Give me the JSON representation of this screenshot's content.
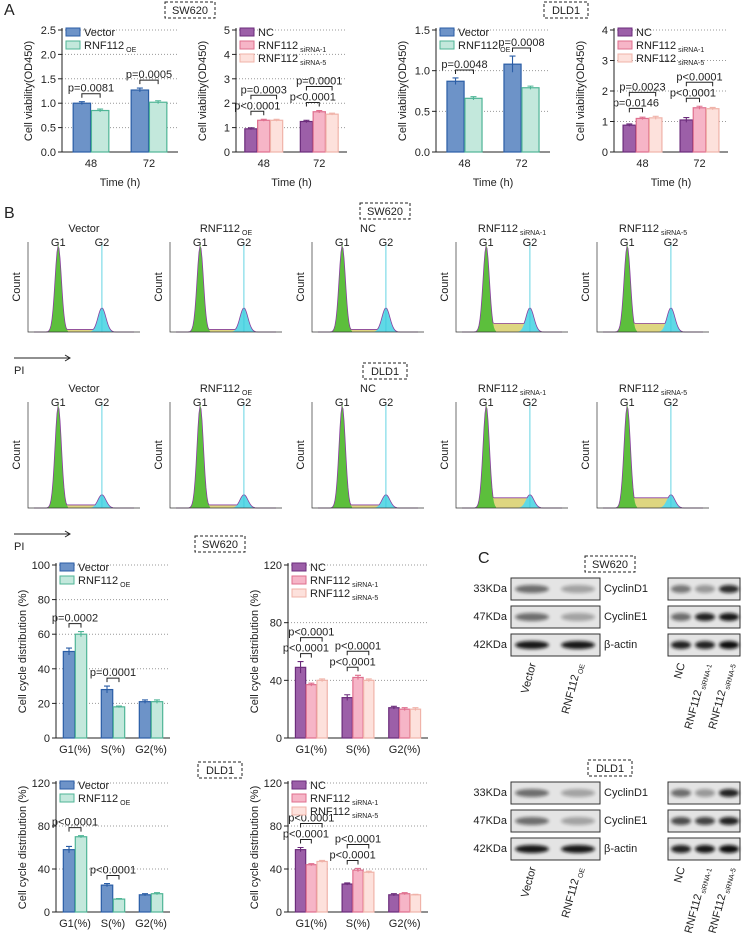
{
  "panel_a": {
    "label": "A",
    "cell_lines": [
      "SW620",
      "DLD1"
    ]
  },
  "chart_data": [
    {
      "type": "bar",
      "ylabel": "Cell viability(OD450)",
      "xlabel": "Time (h)",
      "categories": [
        "48",
        "72"
      ],
      "ylim": [
        0,
        2.5
      ],
      "yticks": [
        {
          "value": 0,
          "label": "0.0"
        },
        {
          "value": 0.5,
          "label": "0.5"
        },
        {
          "value": 1,
          "label": "1.0"
        },
        {
          "value": 1.5,
          "label": "1.5"
        },
        {
          "value": 2,
          "label": "2.0"
        },
        {
          "value": 2.5,
          "label": "2.5"
        }
      ],
      "grid": true,
      "series": [
        {
          "name": "Vector",
          "color": "#6d93c8",
          "edge": "#2b5ea6",
          "values": [
            1.0,
            1.27
          ],
          "errors": [
            0.03,
            0.04
          ]
        },
        {
          "name": "RNF112",
          "name_sub": "OE",
          "color": "#c3e8dc",
          "edge": "#4fb596",
          "values": [
            0.85,
            1.02
          ],
          "errors": [
            0.03,
            0.03
          ]
        }
      ],
      "annotations": [
        [
          "p=0.0081"
        ],
        [
          "p=0.0005"
        ]
      ]
    },
    {
      "type": "bar",
      "ylabel": "Cell viability(OD450)",
      "xlabel": "Time (h)",
      "categories": [
        "48",
        "72"
      ],
      "ylim": [
        0,
        5
      ],
      "yticks": [
        0,
        1,
        2,
        3,
        4,
        5
      ],
      "grid": true,
      "series": [
        {
          "name": "NC",
          "color": "#9c5fa8",
          "edge": "#6b2c7b",
          "values": [
            0.95,
            1.25
          ],
          "errors": [
            0.04,
            0.05
          ]
        },
        {
          "name": "RNF112",
          "name_sub": "siRNA-1",
          "color": "#f6b5c7",
          "edge": "#df6f8e",
          "values": [
            1.3,
            1.65
          ],
          "errors": [
            0.04,
            0.05
          ]
        },
        {
          "name": "RNF112",
          "name_sub": "siRNA-5",
          "color": "#fde1dc",
          "edge": "#f0b3a9",
          "values": [
            1.3,
            1.55
          ],
          "errors": [
            0.04,
            0.04
          ]
        }
      ],
      "annotations": [
        [
          "p<0.0001",
          "p=0.0003"
        ],
        [
          "p<0.0001",
          "p=0.0001"
        ]
      ]
    },
    {
      "type": "bar",
      "ylabel": "Cell viability(OD450)",
      "xlabel": "Time (h)",
      "categories": [
        "48",
        "72"
      ],
      "ylim": [
        0,
        1.5
      ],
      "yticks": [
        {
          "value": 0,
          "label": "0.0"
        },
        {
          "value": 0.5,
          "label": "0.5"
        },
        {
          "value": 1,
          "label": "1.0"
        },
        {
          "value": 1.5,
          "label": "1.5"
        }
      ],
      "grid": true,
      "series": [
        {
          "name": "Vector",
          "color": "#6d93c8",
          "edge": "#2b5ea6",
          "values": [
            0.87,
            1.08
          ],
          "errors": [
            0.04,
            0.1
          ]
        },
        {
          "name": "RNF112",
          "name_sub": "OE",
          "color": "#c3e8dc",
          "edge": "#4fb596",
          "values": [
            0.66,
            0.79
          ],
          "errors": [
            0.02,
            0.02
          ]
        }
      ],
      "annotations": [
        [
          "p=0.0048"
        ],
        [
          "p=0.0008"
        ]
      ]
    },
    {
      "type": "bar",
      "ylabel": "Cell viability(OD450)",
      "xlabel": "Time (h)",
      "categories": [
        "48",
        "72"
      ],
      "ylim": [
        0,
        4
      ],
      "yticks": [
        0,
        1,
        2,
        3,
        4
      ],
      "grid": true,
      "series": [
        {
          "name": "NC",
          "color": "#9c5fa8",
          "edge": "#6b2c7b",
          "values": [
            0.88,
            1.05
          ],
          "errors": [
            0.04,
            0.08
          ]
        },
        {
          "name": "RNF112",
          "name_sub": "siRNA-1",
          "color": "#f6b5c7",
          "edge": "#df6f8e",
          "values": [
            1.1,
            1.45
          ],
          "errors": [
            0.04,
            0.05
          ]
        },
        {
          "name": "RNF112",
          "name_sub": "siRNA-5",
          "color": "#fde1dc",
          "edge": "#f0b3a9",
          "values": [
            1.12,
            1.42
          ],
          "errors": [
            0.05,
            0.04
          ]
        }
      ],
      "annotations": [
        [
          "p=0.0146",
          "p=0.0023"
        ],
        [
          "p<0.0001",
          "p<0.0001"
        ]
      ]
    },
    {
      "type": "bar",
      "ylabel": "Cell cycle distribution (%)",
      "categories": [
        "G1(%)",
        "S(%)",
        "G2(%)"
      ],
      "ylim": [
        0,
        100
      ],
      "yticks": [
        0,
        20,
        40,
        60,
        80,
        100
      ],
      "grid": true,
      "series": [
        {
          "name": "Vector",
          "color": "#6d93c8",
          "edge": "#2b5ea6",
          "values": [
            50,
            28,
            21
          ],
          "errors": [
            2,
            2,
            1
          ]
        },
        {
          "name": "RNF112",
          "name_sub": "OE",
          "color": "#c3e8dc",
          "edge": "#4fb596",
          "values": [
            60,
            18,
            21
          ],
          "errors": [
            1.5,
            0.5,
            1
          ]
        }
      ],
      "annotations": [
        [
          "p=0.0002"
        ],
        [
          "p=0.0001"
        ],
        []
      ]
    },
    {
      "type": "bar",
      "ylabel": "Cell cycle distribution (%)",
      "categories": [
        "G1(%)",
        "S(%)",
        "G2(%)"
      ],
      "ylim": [
        0,
        120
      ],
      "yticks": [
        0,
        40,
        80,
        120
      ],
      "grid": true,
      "series": [
        {
          "name": "NC",
          "color": "#9c5fa8",
          "edge": "#6b2c7b",
          "values": [
            49,
            28,
            21
          ],
          "errors": [
            4,
            2,
            1
          ]
        },
        {
          "name": "RNF112",
          "name_sub": "siRNA-1",
          "color": "#f6b5c7",
          "edge": "#df6f8e",
          "values": [
            37,
            42,
            20
          ],
          "errors": [
            1,
            1.5,
            1
          ]
        },
        {
          "name": "RNF112",
          "name_sub": "siRNA-5",
          "color": "#fde1dc",
          "edge": "#f0b3a9",
          "values": [
            40,
            40,
            20
          ],
          "errors": [
            1,
            1,
            1
          ]
        }
      ],
      "annotations": [
        [
          "p<0.0001",
          "p<0.0001"
        ],
        [
          "p<0.0001",
          "p<0.0001"
        ],
        []
      ]
    },
    {
      "type": "bar",
      "ylabel": "Cell cycle distribution (%)",
      "categories": [
        "G1(%)",
        "S(%)",
        "G2(%)"
      ],
      "ylim": [
        0,
        120
      ],
      "yticks": [
        0,
        40,
        80,
        120
      ],
      "grid": true,
      "series": [
        {
          "name": "Vector",
          "color": "#6d93c8",
          "edge": "#2b5ea6",
          "values": [
            58,
            25,
            16
          ],
          "errors": [
            3,
            1.5,
            1
          ]
        },
        {
          "name": "RNF112",
          "name_sub": "OE",
          "color": "#c3e8dc",
          "edge": "#4fb596",
          "values": [
            70,
            12,
            17
          ],
          "errors": [
            1,
            0.5,
            1
          ]
        }
      ],
      "annotations": [
        [
          "p<0.0001"
        ],
        [
          "p<0.0001"
        ],
        []
      ]
    },
    {
      "type": "bar",
      "ylabel": "Cell cycle distribution (%)",
      "categories": [
        "G1(%)",
        "S(%)",
        "G2(%)"
      ],
      "ylim": [
        0,
        120
      ],
      "yticks": [
        0,
        40,
        80,
        120
      ],
      "grid": true,
      "series": [
        {
          "name": "NC",
          "color": "#9c5fa8",
          "edge": "#6b2c7b",
          "values": [
            58,
            26,
            16
          ],
          "errors": [
            2,
            1,
            1
          ]
        },
        {
          "name": "RNF112",
          "name_sub": "siRNA-1",
          "color": "#f6b5c7",
          "edge": "#df6f8e",
          "values": [
            44,
            39,
            17
          ],
          "errors": [
            1,
            1.5,
            1
          ]
        },
        {
          "name": "RNF112",
          "name_sub": "siRNA-5",
          "color": "#fde1dc",
          "edge": "#f0b3a9",
          "values": [
            47,
            37,
            16
          ],
          "errors": [
            1,
            1,
            0.5
          ]
        }
      ],
      "annotations": [
        [
          "p<0.0001",
          "p<0.0001"
        ],
        [
          "p<0.0001",
          "p<0.0001"
        ],
        []
      ]
    }
  ],
  "panel_b": {
    "label": "B",
    "axis": "PI",
    "y_label": "Count",
    "peak_labels": [
      "G1",
      "G2"
    ],
    "rows": [
      {
        "cell_line": "SW620"
      },
      {
        "cell_line": "DLD1"
      }
    ],
    "plots": [
      {
        "title": "Vector"
      },
      {
        "title": "RNF112",
        "sub": "OE"
      },
      {
        "title": "NC"
      },
      {
        "title": "RNF112",
        "sub": "siRNA-1"
      },
      {
        "title": "RNF112",
        "sub": "siRNA-5"
      }
    ]
  },
  "panel_cycle": {
    "cell_lines": [
      "SW620",
      "DLD1"
    ]
  },
  "panel_c": {
    "label": "C",
    "blocks": [
      {
        "cell_line": "SW620"
      },
      {
        "cell_line": "DLD1"
      }
    ],
    "sizes": [
      "33KDa",
      "47KDa",
      "42KDa"
    ],
    "proteins": [
      "CyclinD1",
      "CyclinE1",
      "β-actin"
    ],
    "lanes_left": [
      {
        "title": "Vector"
      },
      {
        "title": "RNF112",
        "sub": "OE"
      }
    ],
    "lanes_right": [
      {
        "title": "NC"
      },
      {
        "title": "RNF112",
        "sub": "siRNA-1"
      },
      {
        "title": "RNF112",
        "sub": "siRNA-5"
      }
    ]
  }
}
